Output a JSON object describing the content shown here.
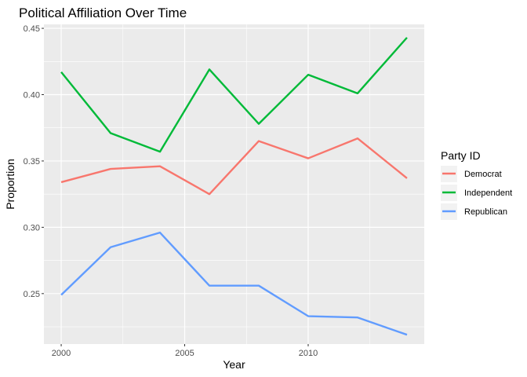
{
  "chart_data": {
    "type": "line",
    "title": "Political Affiliation Over Time",
    "xlabel": "Year",
    "ylabel": "Proportion",
    "x": [
      2000,
      2002,
      2004,
      2006,
      2008,
      2010,
      2012,
      2014
    ],
    "xlim": [
      1999.3,
      2014.7
    ],
    "ylim": [
      0.212,
      0.453
    ],
    "xticks": [
      2000,
      2005,
      2010
    ],
    "xtick_labels": [
      "2000",
      "2005",
      "2010"
    ],
    "yticks": [
      0.25,
      0.3,
      0.35,
      0.4,
      0.45
    ],
    "ytick_labels": [
      "0.25",
      "0.30",
      "0.35",
      "0.40",
      "0.45"
    ],
    "grid": true,
    "legend": {
      "title": "Party ID",
      "position": "right"
    },
    "series": [
      {
        "name": "Democrat",
        "color": "#F8766D",
        "values": [
          0.334,
          0.344,
          0.346,
          0.325,
          0.365,
          0.352,
          0.367,
          0.337
        ]
      },
      {
        "name": "Independent",
        "color": "#00BA38",
        "values": [
          0.417,
          0.371,
          0.357,
          0.419,
          0.378,
          0.415,
          0.401,
          0.443
        ]
      },
      {
        "name": "Republican",
        "color": "#619CFF",
        "values": [
          0.249,
          0.285,
          0.296,
          0.256,
          0.256,
          0.233,
          0.232,
          0.219
        ]
      }
    ]
  }
}
